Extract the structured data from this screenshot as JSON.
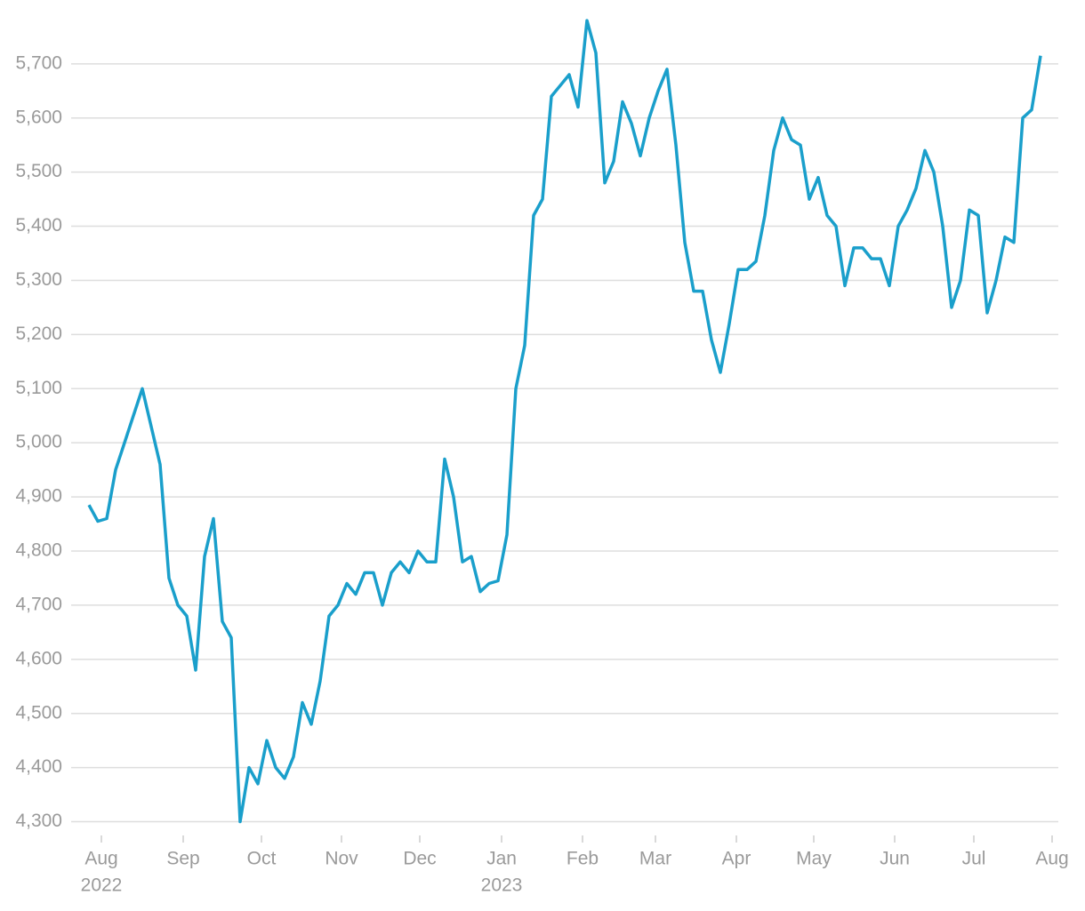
{
  "chart_data": {
    "type": "line",
    "series": [
      {
        "color": "#1a9fcb",
        "values": [
          4885,
          4855,
          4860,
          4950,
          5000,
          5050,
          5100,
          5030,
          4960,
          4750,
          4700,
          4680,
          4580,
          4790,
          4860,
          4670,
          4640,
          4300,
          4400,
          4370,
          4450,
          4400,
          4380,
          4420,
          4520,
          4480,
          4560,
          4680,
          4700,
          4740,
          4720,
          4760,
          4760,
          4700,
          4760,
          4780,
          4760,
          4800,
          4780,
          4780,
          4970,
          4900,
          4780,
          4790,
          4725,
          4740,
          4745,
          4830,
          5100,
          5180,
          5420,
          5450,
          5640,
          5660,
          5680,
          5620,
          5780,
          5720,
          5480,
          5520,
          5630,
          5590,
          5530,
          5600,
          5650,
          5690,
          5550,
          5370,
          5280,
          5280,
          5190,
          5130,
          5220,
          5320,
          5320,
          5335,
          5420,
          5540,
          5600,
          5560,
          5550,
          5450,
          5490,
          5420,
          5400,
          5290,
          5360,
          5360,
          5340,
          5340,
          5290,
          5400,
          5430,
          5470,
          5540,
          5500,
          5400,
          5250,
          5300,
          5430,
          5420,
          5240,
          5300,
          5380,
          5370,
          5600,
          5615,
          5715
        ]
      }
    ],
    "xlim": [
      -1,
      109
    ],
    "xticks": [
      {
        "value": 1.4,
        "label": "Aug",
        "year": "2022"
      },
      {
        "value": 10.6,
        "label": "Sep"
      },
      {
        "value": 19.4,
        "label": "Oct"
      },
      {
        "value": 28.4,
        "label": "Nov"
      },
      {
        "value": 37.2,
        "label": "Dec"
      },
      {
        "value": 46.4,
        "label": "Jan",
        "year": "2023"
      },
      {
        "value": 55.5,
        "label": "Feb"
      },
      {
        "value": 63.7,
        "label": "Mar"
      },
      {
        "value": 72.8,
        "label": "Apr"
      },
      {
        "value": 81.5,
        "label": "May"
      },
      {
        "value": 90.6,
        "label": "Jun"
      },
      {
        "value": 99.5,
        "label": "Jul"
      },
      {
        "value": 108.3,
        "label": "Aug"
      }
    ],
    "ylim": [
      4250,
      5790
    ],
    "yticks": [
      {
        "value": 4300,
        "label": "4,300"
      },
      {
        "value": 4400,
        "label": "4,400"
      },
      {
        "value": 4500,
        "label": "4,500"
      },
      {
        "value": 4600,
        "label": "4,600"
      },
      {
        "value": 4700,
        "label": "4,700"
      },
      {
        "value": 4800,
        "label": "4,800"
      },
      {
        "value": 4900,
        "label": "4,900"
      },
      {
        "value": 5000,
        "label": "5,000"
      },
      {
        "value": 5100,
        "label": "5,100"
      },
      {
        "value": 5200,
        "label": "5,200"
      },
      {
        "value": 5300,
        "label": "5,300"
      },
      {
        "value": 5400,
        "label": "5,400"
      },
      {
        "value": 5500,
        "label": "5,500"
      },
      {
        "value": 5600,
        "label": "5,600"
      },
      {
        "value": 5700,
        "label": "5,700"
      }
    ],
    "grid": true
  }
}
